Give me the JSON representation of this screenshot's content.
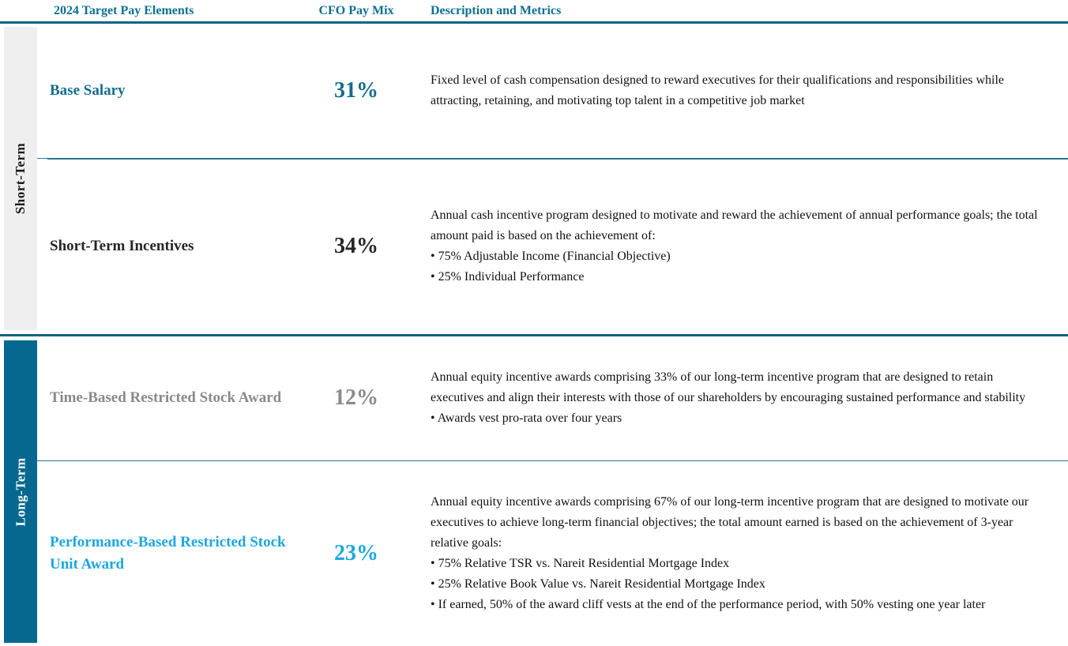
{
  "header": {
    "col1": "2024 Target Pay Elements",
    "col2": "CFO Pay Mix",
    "col3": "Description and Metrics"
  },
  "sections": [
    {
      "label": "Short-Term",
      "rows": [
        {
          "title": "Base Salary",
          "pay_mix": "31%",
          "description": "Fixed level of cash compensation designed to reward executives for their qualifications and responsibilities while attracting, retaining, and motivating top talent in a competitive job market",
          "bullets": []
        },
        {
          "title": "Short-Term Incentives",
          "pay_mix": "34%",
          "description": "Annual cash incentive program designed to motivate and reward the achievement of annual performance goals; the total amount paid is based on the achievement of:",
          "bullets": [
            "• 75% Adjustable Income (Financial Objective)",
            "• 25% Individual Performance"
          ]
        }
      ]
    },
    {
      "label": "Long-Term",
      "rows": [
        {
          "title": "Time-Based Restricted Stock Award",
          "pay_mix": "12%",
          "description": "Annual equity incentive awards comprising 33% of our long-term incentive program that are designed to retain executives and align their interests with those of our shareholders by encouraging sustained performance and stability",
          "bullets": [
            "• Awards vest pro-rata over four years"
          ]
        },
        {
          "title": "Performance-Based Restricted Stock Unit Award",
          "pay_mix": "23%",
          "description": "Annual equity incentive awards comprising 67% of our long-term incentive program that are designed to motivate our executives to achieve long-term financial objectives; the total amount earned is based on the achievement of 3-year relative goals:",
          "bullets": [
            "• 75% Relative TSR vs. Nareit Residential Mortgage Index",
            "• 25% Relative Book Value vs. Nareit Residential Mortgage Index",
            "• If earned, 50% of the award cliff vests at the end of the performance period, with 50% vesting one year later"
          ]
        }
      ]
    }
  ],
  "colors": {
    "header_text": "#0e7190",
    "rule_dark": "#0c6285",
    "rule_thin": "#2d7394",
    "short_term_rail_bg": "#f0efef",
    "short_term_rail_text": "#1a1a1a",
    "long_term_rail_bg": "#06688f",
    "long_term_rail_text": "#ffffff",
    "base_salary_accent": "#156c90",
    "short_term_incentives_accent": "#262626",
    "time_based_accent": "#8a8a8a",
    "performance_based_accent": "#1ca7e0",
    "body_text": "#111111"
  }
}
